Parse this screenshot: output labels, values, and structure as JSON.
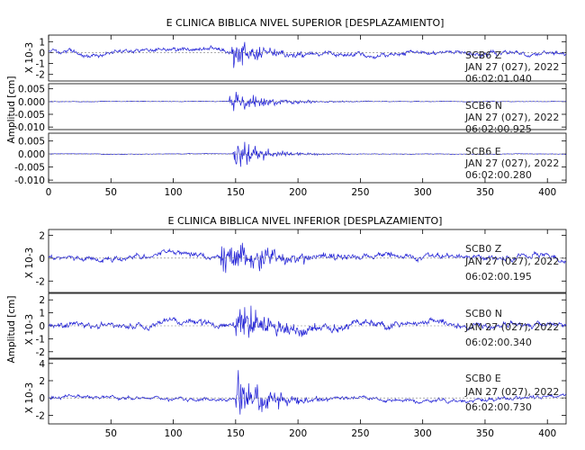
{
  "chart_data": [
    {
      "type": "line",
      "title": "E CLINICA BIBLICA NIVEL SUPERIOR [DESPLAZAMIENTO]",
      "ylabel": "Amplitud [cm]",
      "xlim": [
        0,
        415
      ],
      "xticks": [
        "0",
        "50",
        "100",
        "150",
        "200",
        "250",
        "300",
        "350",
        "400"
      ],
      "series": [
        {
          "name": "SCB6 Z",
          "ann_lines": [
            "SCB6 Z",
            "JAN 27 (027), 2022",
            "06:02:01.040"
          ],
          "exponent": "X 10-3",
          "ylim": [
            -2.6,
            1.6
          ],
          "yticks": [
            -2,
            -1,
            0,
            1
          ],
          "ytick_labels": [
            "-2",
            "-1",
            "0",
            "1"
          ],
          "amp": 0.45,
          "event": {
            "start": 147,
            "peak": 1.85,
            "decay": 22
          },
          "seed": 3
        },
        {
          "name": "SCB6 N",
          "ann_lines": [
            "SCB6 N",
            "JAN 27 (027), 2022",
            "06:02:00.925"
          ],
          "exponent": "",
          "ylim": [
            -0.011,
            0.007
          ],
          "yticks": [
            -0.01,
            -0.005,
            0.0,
            0.005
          ],
          "ytick_labels": [
            "-0.010",
            "-0.005",
            "0.000",
            "0.005"
          ],
          "amp": 0.0002,
          "event": {
            "start": 145,
            "peak": 0.0055,
            "decay": 30
          },
          "seed": 7
        },
        {
          "name": "SCB6 E",
          "ann_lines": [
            "SCB6 E",
            "JAN 27 (027), 2022",
            "06:02:00.280"
          ],
          "exponent": "",
          "ylim": [
            -0.011,
            0.008
          ],
          "yticks": [
            -0.01,
            -0.005,
            0.0,
            0.005
          ],
          "ytick_labels": [
            "-0.010",
            "-0.005",
            "0.000",
            "0.005"
          ],
          "amp": 0.0002,
          "event": {
            "start": 148,
            "peak": 0.0072,
            "decay": 25
          },
          "seed": 11
        }
      ]
    },
    {
      "type": "line",
      "title": "E CLINICA BIBLICA NIVEL INFERIOR [DESPLAZAMIENTO]",
      "ylabel": "Amplitud [cm]",
      "xlim": [
        0,
        415
      ],
      "xticks": [
        "50",
        "100",
        "150",
        "200",
        "250",
        "300",
        "350",
        "400"
      ],
      "series": [
        {
          "name": "SCB0 Z",
          "ann_lines": [
            "SCB0 Z",
            "JAN 27 (027), 2022",
            "06:02:00.195"
          ],
          "exponent": "X 10-3",
          "ylim": [
            -3,
            2.5
          ],
          "yticks": [
            -2,
            0,
            2
          ],
          "ytick_labels": [
            "-2",
            "0",
            "2"
          ],
          "amp": 0.5,
          "event": {
            "start": 138,
            "peak": 2.1,
            "decay": 40
          },
          "seed": 19
        },
        {
          "name": "SCB0 N",
          "ann_lines": [
            "SCB0 N",
            "JAN 27 (027), 2022",
            "06:02:00.340"
          ],
          "exponent": "X 10-3",
          "ylim": [
            -2.5,
            2.5
          ],
          "yticks": [
            -2,
            -1,
            0,
            1,
            2
          ],
          "ytick_labels": [
            "-2",
            "-1",
            "0",
            "1",
            "2"
          ],
          "amp": 0.5,
          "event": {
            "start": 150,
            "peak": 2.0,
            "decay": 35
          },
          "seed": 23
        },
        {
          "name": "SCB0 E",
          "ann_lines": [
            "SCB0 E",
            "JAN 27 (027), 2022",
            "06:02:00.730"
          ],
          "exponent": "X 10-3",
          "ylim": [
            -3.0,
            4.5
          ],
          "yticks": [
            -2,
            0,
            2,
            4
          ],
          "ytick_labels": [
            "-2",
            "0",
            "2",
            "4"
          ],
          "amp": 0.45,
          "event": {
            "start": 150,
            "peak": 3.8,
            "decay": 25
          },
          "seed": 31
        }
      ]
    }
  ]
}
